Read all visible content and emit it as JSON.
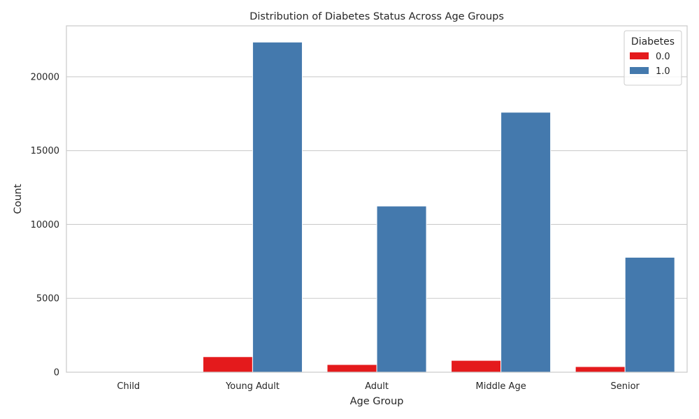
{
  "chart_data": {
    "type": "bar",
    "title": "Distribution of Diabetes Status Across Age Groups",
    "xlabel": "Age Group",
    "ylabel": "Count",
    "categories": [
      "Child",
      "Young Adult",
      "Adult",
      "Middle Age",
      "Senior"
    ],
    "series": [
      {
        "name": "0.0",
        "color": "#e41a1c",
        "values": [
          0,
          1050,
          520,
          800,
          380
        ]
      },
      {
        "name": "1.0",
        "color": "#4479ad",
        "values": [
          0,
          22350,
          11250,
          17600,
          7780
        ]
      }
    ],
    "ylim": [
      0,
      23450
    ],
    "yticks": [
      0,
      5000,
      10000,
      15000,
      20000
    ],
    "grid": true,
    "legend": {
      "title": "Diabetes",
      "position": "top-right"
    }
  }
}
